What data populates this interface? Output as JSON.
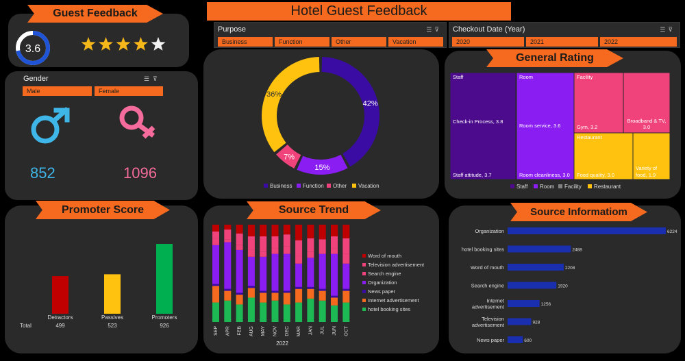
{
  "title": "Hotel Guest Feedback",
  "guest_feedback": {
    "header": "Guest Feedback",
    "rating": "3.6",
    "rating_value": 3.6,
    "stars_filled": 4,
    "stars_total": 5
  },
  "gender": {
    "header": "Gender",
    "chips": [
      "Male",
      "Female"
    ],
    "male_count": "852",
    "female_count": "1096",
    "male_color": "#3fb6e8",
    "female_color": "#f56b9b"
  },
  "purpose_slicer": {
    "header": "Purpose",
    "options": [
      "Business",
      "Function",
      "Other",
      "Vacation"
    ]
  },
  "checkout_slicer": {
    "header": "Checkout Date (Year)",
    "options": [
      "2020",
      "2021",
      "2022"
    ]
  },
  "colors": {
    "accent": "#f56a1e",
    "panel": "#2a2a2a",
    "business": "#3a0ca3",
    "function": "#8a1df2",
    "other": "#f0437c",
    "vacation": "#ffc20e"
  },
  "chart_data": [
    {
      "type": "pie",
      "variant": "donut",
      "categories": [
        "Business",
        "Function",
        "Other",
        "Vacation"
      ],
      "values": [
        42,
        15,
        7,
        36
      ],
      "labels": [
        "42%",
        "15%",
        "7%",
        "36%"
      ],
      "colors": [
        "#3a0ca3",
        "#8a1df2",
        "#f0437c",
        "#ffc20e"
      ],
      "legend": "bottom"
    },
    {
      "type": "treemap",
      "title": "General Rating",
      "groups": [
        {
          "name": "Staff",
          "color": "#4b0b8c",
          "items": [
            {
              "label": "Check-in Process, 3.8",
              "value": 3.8
            },
            {
              "label": "Staff attitude, 3.7",
              "value": 3.7
            }
          ]
        },
        {
          "name": "Room",
          "color": "#8a1df2",
          "items": [
            {
              "label": "Room service, 3.6",
              "value": 3.6
            },
            {
              "label": "Room cleanliness, 3.0",
              "value": 3.0
            }
          ]
        },
        {
          "name": "Facility",
          "color": "#f0437c",
          "items": [
            {
              "label": "Gym, 3.2",
              "value": 3.2
            },
            {
              "label": "Broadband & TV, 3.0",
              "value": 3.0
            }
          ]
        },
        {
          "name": "Restaurant",
          "color": "#ffc20e",
          "items": [
            {
              "label": "Food quality, 3.0",
              "value": 3.0
            },
            {
              "label": "Variety of food, 1.9",
              "value": 1.9
            }
          ]
        }
      ],
      "legend": "bottom",
      "legend_entries": [
        "Staff",
        "Room",
        "Facility",
        "Restaurant"
      ],
      "legend_colors": [
        "#4b0b8c",
        "#8a1df2",
        "#808080",
        "#ffc20e"
      ]
    },
    {
      "type": "bar",
      "title": "Promoter Score",
      "categories": [
        "Detractors",
        "Passives",
        "Promoters"
      ],
      "values": [
        499,
        523,
        926
      ],
      "value_labels": [
        "499",
        "523",
        "926"
      ],
      "row_label": "Total",
      "colors": [
        "#c00000",
        "#ffc20e",
        "#00b050"
      ]
    },
    {
      "type": "bar",
      "variant": "stacked-100",
      "title": "Source Trend",
      "xlabel": "2022",
      "categories": [
        "SEP",
        "APR",
        "FEB",
        "AUG",
        "MAY",
        "NOV",
        "DEC",
        "MAR",
        "JAN",
        "JUL",
        "JUN",
        "OCT"
      ],
      "series": [
        {
          "name": "hotel booking sites",
          "color": "#1db954",
          "values": [
            20,
            22,
            18,
            25,
            20,
            22,
            18,
            20,
            24,
            22,
            17,
            20
          ]
        },
        {
          "name": "Internet advertisement",
          "color": "#f56a1e",
          "values": [
            17,
            10,
            10,
            10,
            10,
            8,
            12,
            14,
            10,
            10,
            8,
            12
          ]
        },
        {
          "name": "News paper",
          "color": "#3a0ca3",
          "values": [
            2,
            2,
            2,
            2,
            2,
            2,
            2,
            2,
            2,
            2,
            2,
            2
          ]
        },
        {
          "name": "Organization",
          "color": "#8a1df2",
          "values": [
            40,
            48,
            44,
            30,
            35,
            38,
            38,
            24,
            30,
            36,
            43,
            26
          ]
        },
        {
          "name": "Search engine",
          "color": "#f0437c",
          "values": [
            7,
            3,
            5,
            7,
            5,
            6,
            8,
            8,
            6,
            5,
            6,
            10
          ]
        },
        {
          "name": "Television advertisement",
          "color": "#f0437c",
          "values": [
            7,
            10,
            12,
            14,
            16,
            12,
            12,
            16,
            14,
            10,
            12,
            16
          ]
        },
        {
          "name": "Word of mouth",
          "color": "#c00000",
          "values": [
            7,
            5,
            9,
            12,
            12,
            12,
            10,
            16,
            14,
            15,
            12,
            14
          ]
        }
      ],
      "legend": "right"
    },
    {
      "type": "bar",
      "orientation": "horizontal",
      "title": "Source Informatiom",
      "categories": [
        "Organization",
        "hotel booking sites",
        "Word of mouth",
        "Search engine",
        "Internet advertisement",
        "Television advertisement",
        "News paper"
      ],
      "category_lines": [
        [
          "Organization"
        ],
        [
          "hotel booking sites"
        ],
        [
          "Word of mouth"
        ],
        [
          "Search engine"
        ],
        [
          "Internet",
          "advertisement"
        ],
        [
          "Television",
          "advertisement"
        ],
        [
          "News paper"
        ]
      ],
      "values": [
        6224,
        2488,
        2208,
        1920,
        1256,
        928,
        600
      ],
      "value_labels": [
        "6224",
        "2488",
        "2208",
        "1920",
        "1256",
        "928",
        "600"
      ],
      "color": "#1a2fb0"
    }
  ]
}
